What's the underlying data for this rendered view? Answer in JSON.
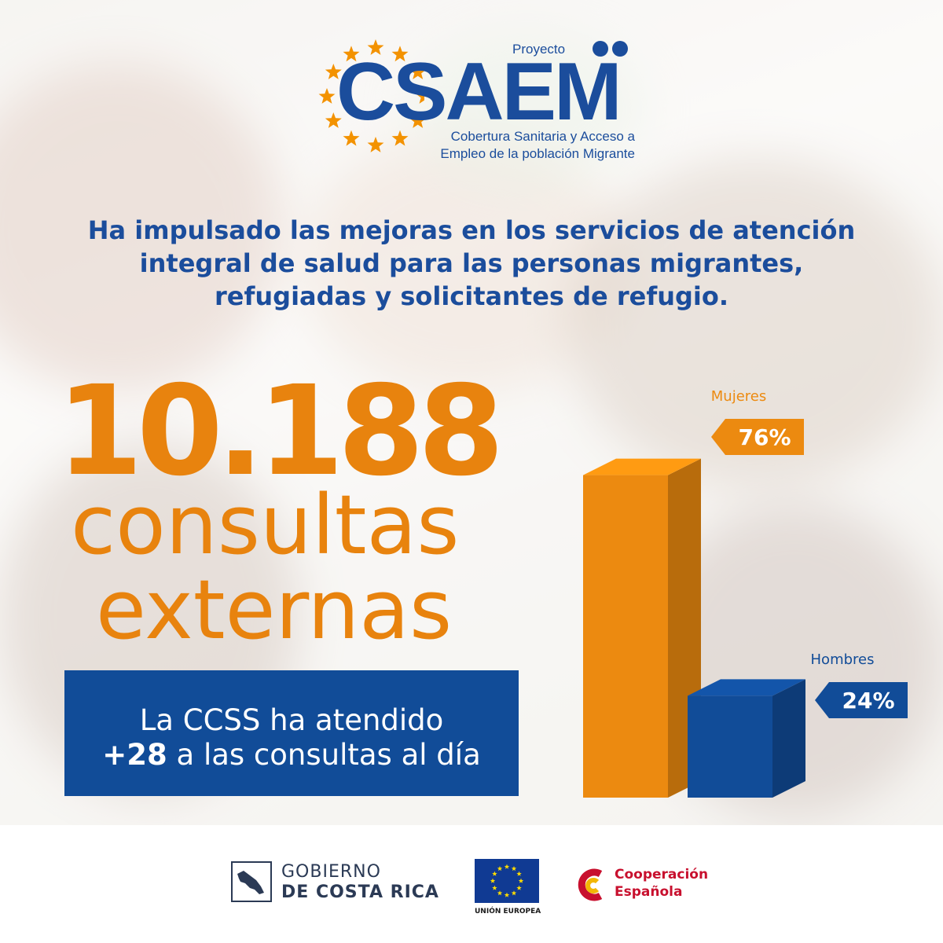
{
  "logo": {
    "proyecto": "Proyecto",
    "brand": "CSAEM",
    "tagline_1": "Cobertura Sanitaria y Acceso a",
    "tagline_2": "Empleo de la población Migrante",
    "star_color": "#f39200",
    "brand_color": "#1b4d9c"
  },
  "headline": {
    "line_1": "Ha impulsado las mejoras en los servicios de atención",
    "line_2": "integral de salud para las personas migrantes,",
    "line_3": "refugiadas y solicitantes de refugio."
  },
  "stat": {
    "number": "10.188",
    "label_1": "consultas",
    "label_2": "externas"
  },
  "callout": {
    "line_1": "La CCSS ha atendido",
    "line_2_bold": "+28",
    "line_2_rest": " a las consultas al día"
  },
  "chart_data": {
    "type": "bar",
    "categories": [
      "Mujeres",
      "Hombres"
    ],
    "values": [
      76,
      24
    ],
    "value_labels": [
      "76%",
      "24%"
    ],
    "colors": [
      "#ec8a10",
      "#114c98"
    ],
    "ylim": [
      0,
      100
    ],
    "grid": false,
    "legend": "none"
  },
  "footer": {
    "gov_line_1": "GOBIERNO",
    "gov_line_2": "DE COSTA RICA",
    "eu_caption": "UNIÓN EUROPEA",
    "coop_line_1": "Cooperación",
    "coop_line_2": "Española"
  },
  "colors": {
    "orange": "#e8830e",
    "blue": "#114c98",
    "red": "#c8102e"
  }
}
